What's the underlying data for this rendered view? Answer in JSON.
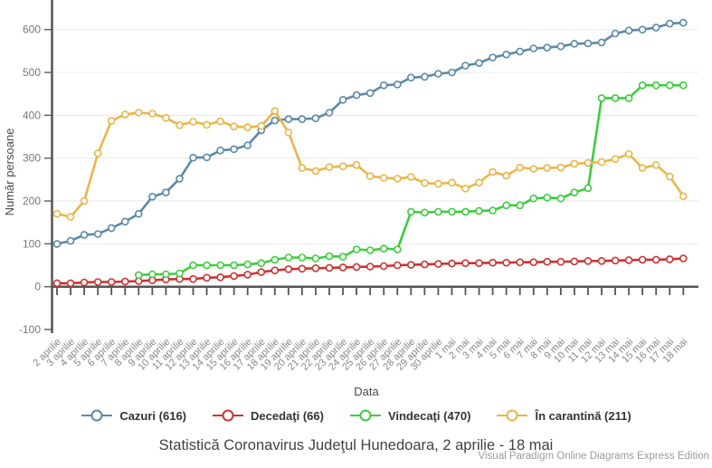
{
  "watermark": "Visual Paradigm Online Diagrams Express Edition",
  "chart_data": {
    "type": "line",
    "title": "Statistică Coronavirus Judeţul Hunedoara, 2 aprilie - 18 mai",
    "xlabel": "Data",
    "ylabel": "Număr persoane",
    "ylim": [
      -100,
      650
    ],
    "yticks": [
      600,
      500,
      400,
      300,
      200,
      100,
      0,
      -100
    ],
    "grid": true,
    "legend_position": "bottom",
    "marker": "open-circle",
    "categories": [
      "2 aprilie",
      "3 aprilie",
      "4 aprilie",
      "5 aprilie",
      "6 aprilie",
      "7 aprilie",
      "8 aprilie",
      "9 aprilie",
      "10 aprilie",
      "11 aprilie",
      "12 aprilie",
      "13 aprilie",
      "14 aprilie",
      "15 aprilie",
      "16 aprilie",
      "17 aprilie",
      "18 aprilie",
      "19 aprilie",
      "20 aprilie",
      "21 aprilie",
      "22 aprilie",
      "23 aprilie",
      "24 aprilie",
      "25 aprilie",
      "26 aprilie",
      "27 aprilie",
      "28 aprilie",
      "29 aprilie",
      "30 aprilie",
      "1 mai",
      "2 mai",
      "3 mai",
      "4 mai",
      "5 mai",
      "6 mai",
      "7 mai",
      "8 mai",
      "9 mai",
      "10 mai",
      "11 mai",
      "12 mai",
      "13 mai",
      "14 mai",
      "15 mai",
      "16 mai",
      "17 mai",
      "18 mai"
    ],
    "series": [
      {
        "name": "Cazuri (616)",
        "color": "#5b8aa8",
        "values": [
          100,
          107,
          121,
          123,
          137,
          152,
          170,
          210,
          220,
          252,
          301,
          302,
          318,
          321,
          330,
          365,
          388,
          391,
          391,
          393,
          406,
          436,
          447,
          452,
          470,
          472,
          488,
          490,
          497,
          500,
          516,
          522,
          535,
          542,
          549,
          556,
          558,
          561,
          567,
          568,
          570,
          591,
          598,
          600,
          605,
          614,
          616
        ]
      },
      {
        "name": "Decedaţi (66)",
        "color": "#cc3333",
        "values": [
          8,
          8,
          10,
          11,
          11,
          12,
          13,
          15,
          17,
          18,
          18,
          21,
          22,
          25,
          28,
          34,
          38,
          41,
          42,
          43,
          44,
          45,
          46,
          47,
          48,
          50,
          51,
          52,
          53,
          54,
          55,
          55,
          56,
          56,
          57,
          57,
          58,
          58,
          59,
          60,
          60,
          61,
          62,
          63,
          63,
          64,
          66
        ]
      },
      {
        "name": "Vindecaţi (470)",
        "color": "#3ecc3e",
        "values": [
          null,
          null,
          null,
          null,
          null,
          null,
          27,
          29,
          29,
          31,
          50,
          50,
          50,
          50,
          52,
          55,
          63,
          68,
          68,
          66,
          71,
          70,
          87,
          85,
          89,
          87,
          175,
          173,
          175,
          175,
          175,
          177,
          178,
          190,
          190,
          206,
          208,
          206,
          220,
          230,
          440,
          440,
          440,
          470,
          470,
          470,
          470
        ]
      },
      {
        "name": "În carantină (211)",
        "color": "#e9b648",
        "values": [
          170,
          163,
          200,
          311,
          387,
          402,
          406,
          404,
          394,
          377,
          385,
          378,
          386,
          374,
          372,
          375,
          410,
          360,
          277,
          270,
          279,
          281,
          284,
          258,
          254,
          252,
          256,
          242,
          240,
          243,
          229,
          243,
          268,
          259,
          278,
          275,
          277,
          278,
          287,
          289,
          291,
          298,
          310,
          277,
          284,
          257,
          211
        ]
      }
    ]
  }
}
